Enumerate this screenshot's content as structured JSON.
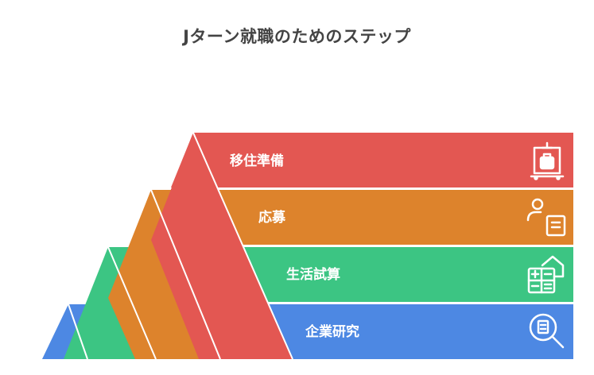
{
  "title": "Jターン就職のためのステップ",
  "steps": [
    {
      "label": "移住準備",
      "icon": "luggage-cart-icon",
      "color": "#e35752"
    },
    {
      "label": "応募",
      "icon": "applicant-form-icon",
      "color": "#dd832c"
    },
    {
      "label": "生活試算",
      "icon": "calculator-house-icon",
      "color": "#3cc583"
    },
    {
      "label": "企業研究",
      "icon": "magnifier-document-icon",
      "color": "#4d88e3"
    }
  ]
}
